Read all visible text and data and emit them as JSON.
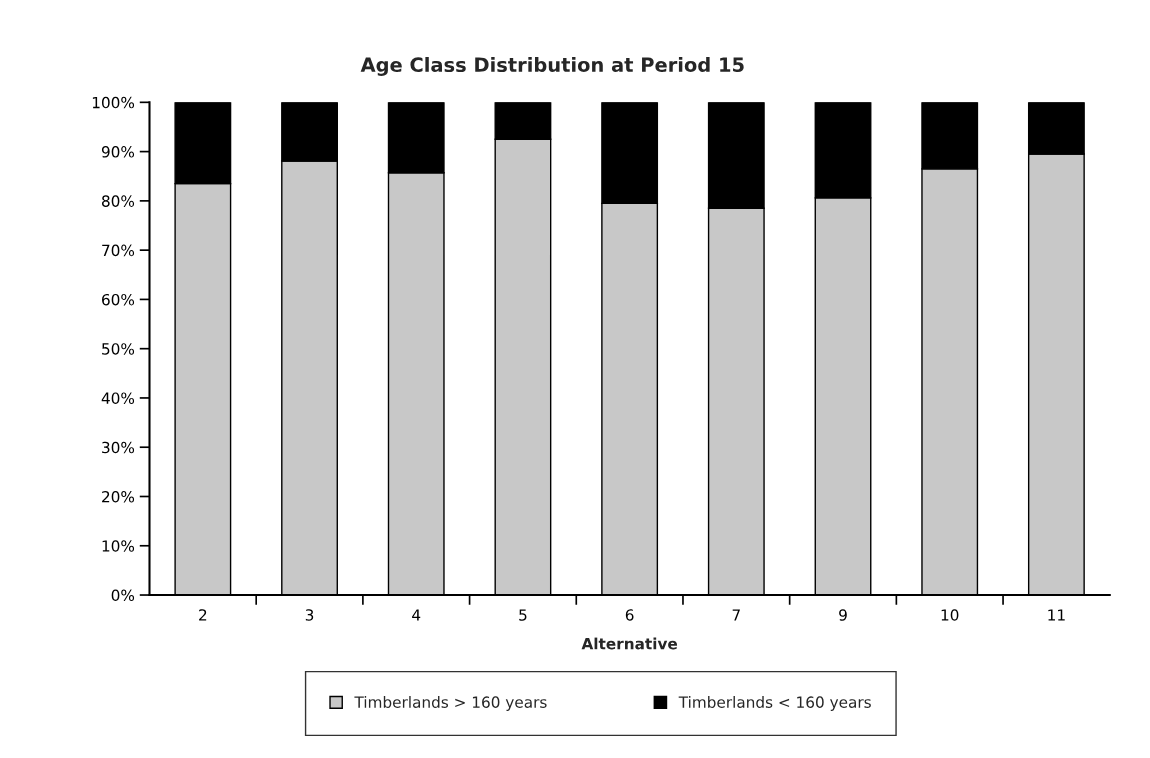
{
  "chart_data": {
    "type": "bar",
    "title": "Age Class Distribution at Period 15",
    "xlabel": "Alternative",
    "categories": [
      "2",
      "3",
      "4",
      "5",
      "6",
      "7",
      "9",
      "10",
      "11"
    ],
    "stacked": true,
    "series": [
      {
        "name": "Timberlands > 160 years",
        "color": "#c8c8c8",
        "values": [
          83.5,
          88.1,
          85.7,
          92.5,
          79.5,
          78.5,
          80.6,
          86.5,
          89.5
        ]
      },
      {
        "name": "Timberlands < 160 years",
        "color": "#000000",
        "values": [
          16.5,
          11.9,
          14.3,
          7.5,
          20.5,
          21.5,
          19.4,
          13.5,
          10.5
        ]
      }
    ],
    "ylim": [
      0,
      100
    ],
    "yticks": [
      {
        "value": 0,
        "label": "0%"
      },
      {
        "value": 10,
        "label": "10%"
      },
      {
        "value": 20,
        "label": "20%"
      },
      {
        "value": 30,
        "label": "30%"
      },
      {
        "value": 40,
        "label": "40%"
      },
      {
        "value": 50,
        "label": "50%"
      },
      {
        "value": 60,
        "label": "60%"
      },
      {
        "value": 70,
        "label": "70%"
      },
      {
        "value": 80,
        "label": "80%"
      },
      {
        "value": 90,
        "label": "90%"
      },
      {
        "value": 100,
        "label": "100%"
      }
    ],
    "grid": false,
    "legend": "bottom"
  }
}
